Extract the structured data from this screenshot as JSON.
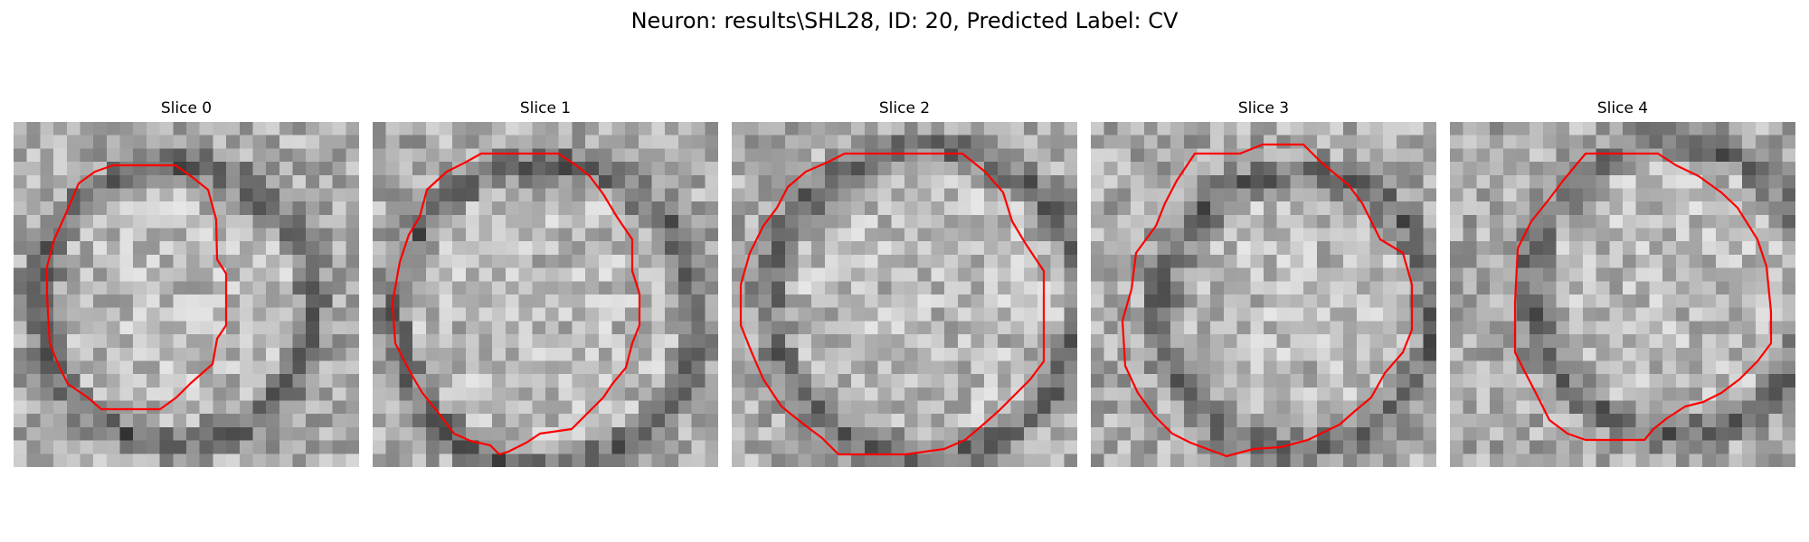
{
  "title": "Neuron: results\\SHL28, ID: 20, Predicted Label: CV",
  "colors": {
    "contour": "#ff0000",
    "background": "#ffffff"
  },
  "panels": [
    {
      "label": "Slice 0"
    },
    {
      "label": "Slice 1"
    },
    {
      "label": "Slice 2"
    },
    {
      "label": "Slice 3"
    },
    {
      "label": "Slice 4"
    }
  ]
}
